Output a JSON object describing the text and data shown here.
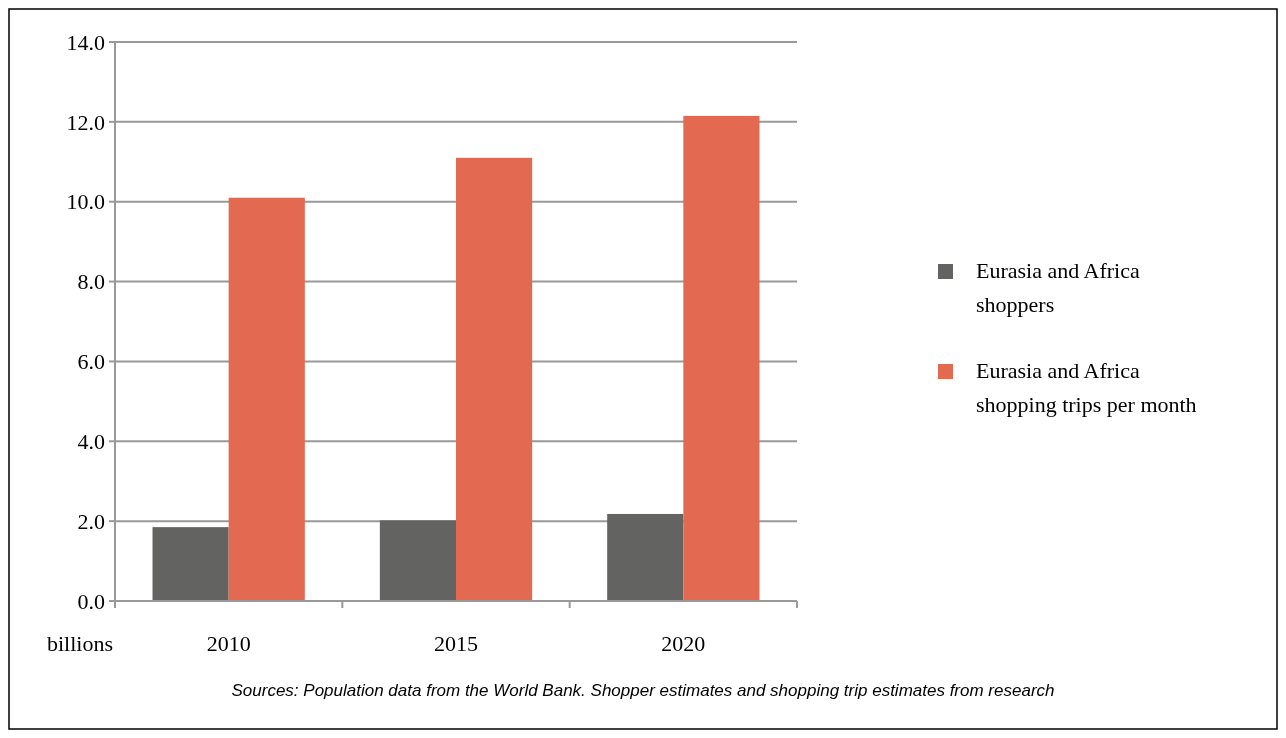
{
  "chart_data": {
    "type": "bar",
    "categories": [
      "2010",
      "2015",
      "2020"
    ],
    "series": [
      {
        "name": "Eurasia and Africa shoppers",
        "color": "#636462",
        "values": [
          1.85,
          2.02,
          2.18
        ]
      },
      {
        "name": "Eurasia and Africa shopping trips per month",
        "color": "#e36a50",
        "values": [
          10.1,
          11.1,
          12.15
        ]
      }
    ],
    "ylabel": "billions",
    "ylim": [
      0,
      14
    ],
    "yticks": [
      {
        "value": 0,
        "label": "0.0"
      },
      {
        "value": 2,
        "label": "2.0"
      },
      {
        "value": 4,
        "label": "4.0"
      },
      {
        "value": 6,
        "label": "6.0"
      },
      {
        "value": 8,
        "label": "8.0"
      },
      {
        "value": 10,
        "label": "10.0"
      },
      {
        "value": 12,
        "label": "12.0"
      },
      {
        "value": 14,
        "label": "14.0"
      }
    ],
    "grid": "y",
    "legend": "right",
    "annotations": [
      "Sources: Population data from the World Bank. Shopper estimates and shopping trip estimates from research"
    ]
  }
}
